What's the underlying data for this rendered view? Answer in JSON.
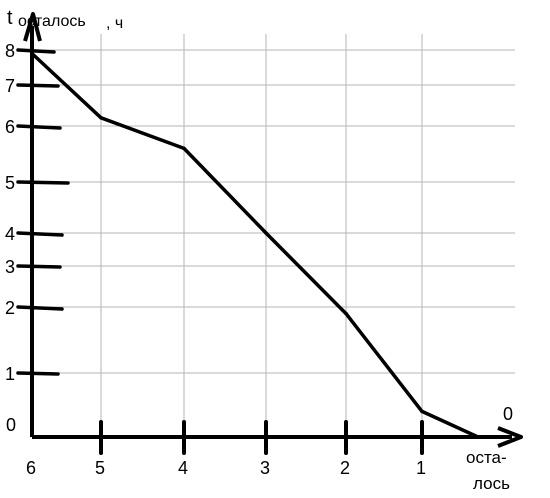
{
  "chart_data": {
    "type": "line",
    "title": "",
    "ylabel": {
      "main": "t",
      "sub": "осталось",
      "unit": ", ч"
    },
    "xlabel": {
      "line1": "оста-",
      "line2": "лось"
    },
    "x_ticks": [
      "6",
      "5",
      "4",
      "3",
      "2",
      "1"
    ],
    "x_end_label": "0",
    "y_ticks": [
      "8",
      "7",
      "6",
      "5",
      "4",
      "3",
      "2",
      "1"
    ],
    "origin_label": "0",
    "xlim": [
      6,
      0
    ],
    "grid": true,
    "series": [
      {
        "x": [
          6,
          5,
          4,
          3,
          2,
          1,
          0
        ],
        "y": [
          7.9,
          6.2,
          5.6,
          4.0,
          1.9,
          0.4,
          0.0
        ]
      }
    ]
  }
}
